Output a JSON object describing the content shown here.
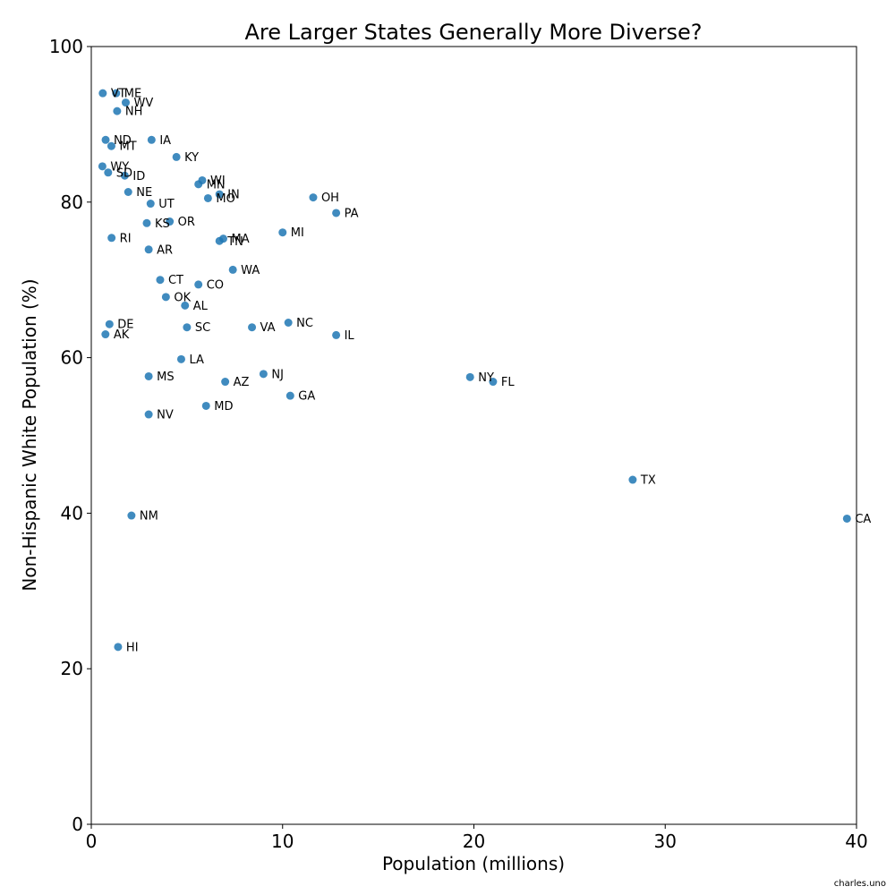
{
  "chart_data": {
    "type": "scatter",
    "title": "Are Larger States Generally More Diverse?",
    "xlabel": "Population (millions)",
    "ylabel": "Non-Hispanic White Population (%)",
    "xlim": [
      0,
      40
    ],
    "ylim": [
      0,
      100
    ],
    "xticks": [
      0,
      10,
      20,
      30,
      40
    ],
    "yticks": [
      0,
      20,
      40,
      60,
      80,
      100
    ],
    "grid": false,
    "point_color": "#1f77b4",
    "credit": "charles.uno",
    "points": [
      {
        "label": "VT",
        "x": 0.6,
        "y": 94.0
      },
      {
        "label": "ME",
        "x": 1.3,
        "y": 94.0
      },
      {
        "label": "WV",
        "x": 1.8,
        "y": 92.8
      },
      {
        "label": "NH",
        "x": 1.35,
        "y": 91.7
      },
      {
        "label": "ND",
        "x": 0.75,
        "y": 88.0
      },
      {
        "label": "MT",
        "x": 1.05,
        "y": 87.2
      },
      {
        "label": "WY",
        "x": 0.58,
        "y": 84.6
      },
      {
        "label": "SD",
        "x": 0.88,
        "y": 83.8
      },
      {
        "label": "ID",
        "x": 1.75,
        "y": 83.4
      },
      {
        "label": "NE",
        "x": 1.93,
        "y": 81.3
      },
      {
        "label": "IA",
        "x": 3.15,
        "y": 88.0
      },
      {
        "label": "KY",
        "x": 4.45,
        "y": 85.8
      },
      {
        "label": "WI",
        "x": 5.8,
        "y": 82.8
      },
      {
        "label": "MN",
        "x": 5.6,
        "y": 82.3
      },
      {
        "label": "IN",
        "x": 6.7,
        "y": 81.0
      },
      {
        "label": "MO",
        "x": 6.1,
        "y": 80.5
      },
      {
        "label": "UT",
        "x": 3.1,
        "y": 79.8
      },
      {
        "label": "OR",
        "x": 4.1,
        "y": 77.5
      },
      {
        "label": "KS",
        "x": 2.9,
        "y": 77.3
      },
      {
        "label": "RI",
        "x": 1.06,
        "y": 75.4
      },
      {
        "label": "TN",
        "x": 6.7,
        "y": 75.0
      },
      {
        "label": "MA",
        "x": 6.9,
        "y": 75.3
      },
      {
        "label": "AR",
        "x": 3.0,
        "y": 73.9
      },
      {
        "label": "WA",
        "x": 7.4,
        "y": 71.3
      },
      {
        "label": "CT",
        "x": 3.6,
        "y": 70.0
      },
      {
        "label": "CO",
        "x": 5.6,
        "y": 69.4
      },
      {
        "label": "OK",
        "x": 3.9,
        "y": 67.8
      },
      {
        "label": "AL",
        "x": 4.9,
        "y": 66.7
      },
      {
        "label": "DE",
        "x": 0.95,
        "y": 64.3
      },
      {
        "label": "SC",
        "x": 5.0,
        "y": 63.9
      },
      {
        "label": "VA",
        "x": 8.4,
        "y": 63.9
      },
      {
        "label": "NC",
        "x": 10.3,
        "y": 64.5
      },
      {
        "label": "AK",
        "x": 0.74,
        "y": 63.0
      },
      {
        "label": "IL",
        "x": 12.8,
        "y": 62.9
      },
      {
        "label": "OH",
        "x": 11.6,
        "y": 80.6
      },
      {
        "label": "PA",
        "x": 12.8,
        "y": 78.6
      },
      {
        "label": "MI",
        "x": 10.0,
        "y": 76.1
      },
      {
        "label": "LA",
        "x": 4.7,
        "y": 59.8
      },
      {
        "label": "MS",
        "x": 3.0,
        "y": 57.6
      },
      {
        "label": "NJ",
        "x": 9.0,
        "y": 57.9
      },
      {
        "label": "AZ",
        "x": 7.0,
        "y": 56.9
      },
      {
        "label": "GA",
        "x": 10.4,
        "y": 55.1
      },
      {
        "label": "MD",
        "x": 6.0,
        "y": 53.8
      },
      {
        "label": "NV",
        "x": 3.0,
        "y": 52.7
      },
      {
        "label": "NY",
        "x": 19.8,
        "y": 57.5
      },
      {
        "label": "FL",
        "x": 21.0,
        "y": 56.9
      },
      {
        "label": "TX",
        "x": 28.3,
        "y": 44.3
      },
      {
        "label": "NM",
        "x": 2.1,
        "y": 39.7
      },
      {
        "label": "CA",
        "x": 39.5,
        "y": 39.3
      },
      {
        "label": "HI",
        "x": 1.4,
        "y": 22.8
      }
    ]
  }
}
